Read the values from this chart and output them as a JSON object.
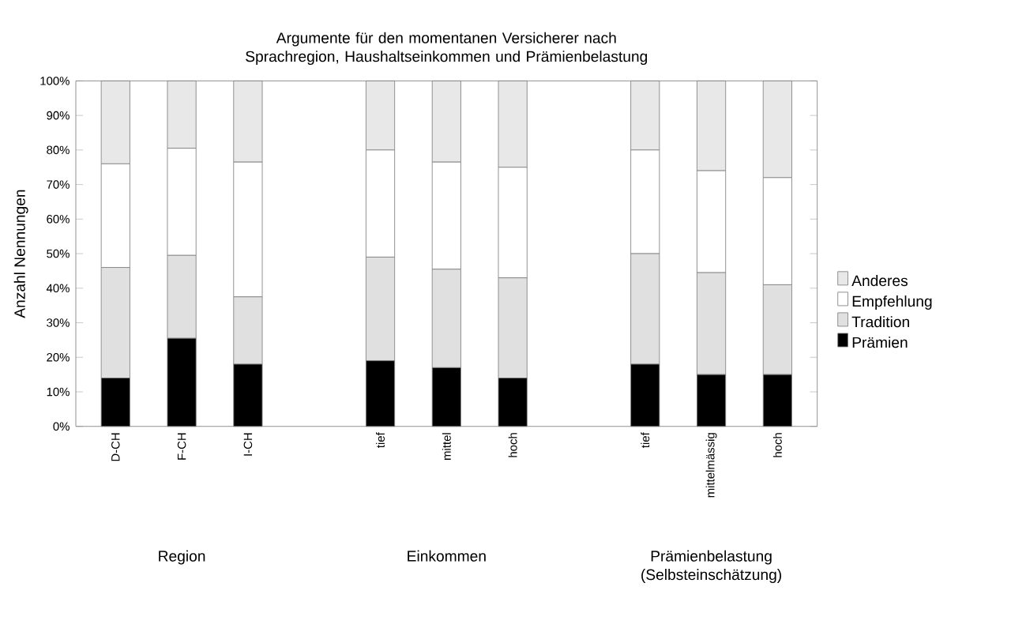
{
  "chart_data": {
    "type": "bar",
    "stacked": true,
    "title": "Argumente für den momentanen Versicherer nach Sprachregion, Haushaltseinkommen und Prämienbelastung",
    "ylabel": "Anzahl Nennungen",
    "categories": [
      "D-CH",
      "F-CH",
      "I-CH",
      null,
      "tief",
      "mittel",
      "hoch",
      null,
      "tief",
      "mittelmässig",
      "hoch"
    ],
    "series": [
      {
        "name": "Prämien",
        "color": "#000000",
        "values": [
          14,
          25.5,
          18,
          null,
          19,
          17,
          14,
          null,
          18,
          15,
          15
        ]
      },
      {
        "name": "Tradition",
        "color": "#e0e0e0",
        "values": [
          32,
          24,
          19.5,
          null,
          30,
          28.5,
          29,
          null,
          32,
          29.5,
          26
        ]
      },
      {
        "name": "Empfehlung",
        "color": "#ffffff",
        "values": [
          30,
          31,
          39,
          null,
          31,
          31,
          32,
          null,
          30,
          29.5,
          31
        ]
      },
      {
        "name": "Anderes",
        "color": "#e8e8e8",
        "values": [
          24,
          19.5,
          23.5,
          null,
          20,
          23.5,
          25,
          null,
          20,
          26,
          28
        ]
      }
    ],
    "ylim": [
      0,
      100
    ],
    "yticks": [
      {
        "value": 0,
        "label": "0%"
      },
      {
        "value": 10,
        "label": "10%"
      },
      {
        "value": 20,
        "label": "20%"
      },
      {
        "value": 30,
        "label": "30%"
      },
      {
        "value": 40,
        "label": "40%"
      },
      {
        "value": 50,
        "label": "50%"
      },
      {
        "value": 60,
        "label": "60%"
      },
      {
        "value": 70,
        "label": "70%"
      },
      {
        "value": 80,
        "label": "80%"
      },
      {
        "value": 90,
        "label": "90%"
      },
      {
        "value": 100,
        "label": "100%"
      }
    ],
    "legend": "right",
    "grid": false,
    "annotations": [
      "Region",
      "Einkommen",
      "Prämienbelastung (Selbsteinschätzung)"
    ]
  }
}
